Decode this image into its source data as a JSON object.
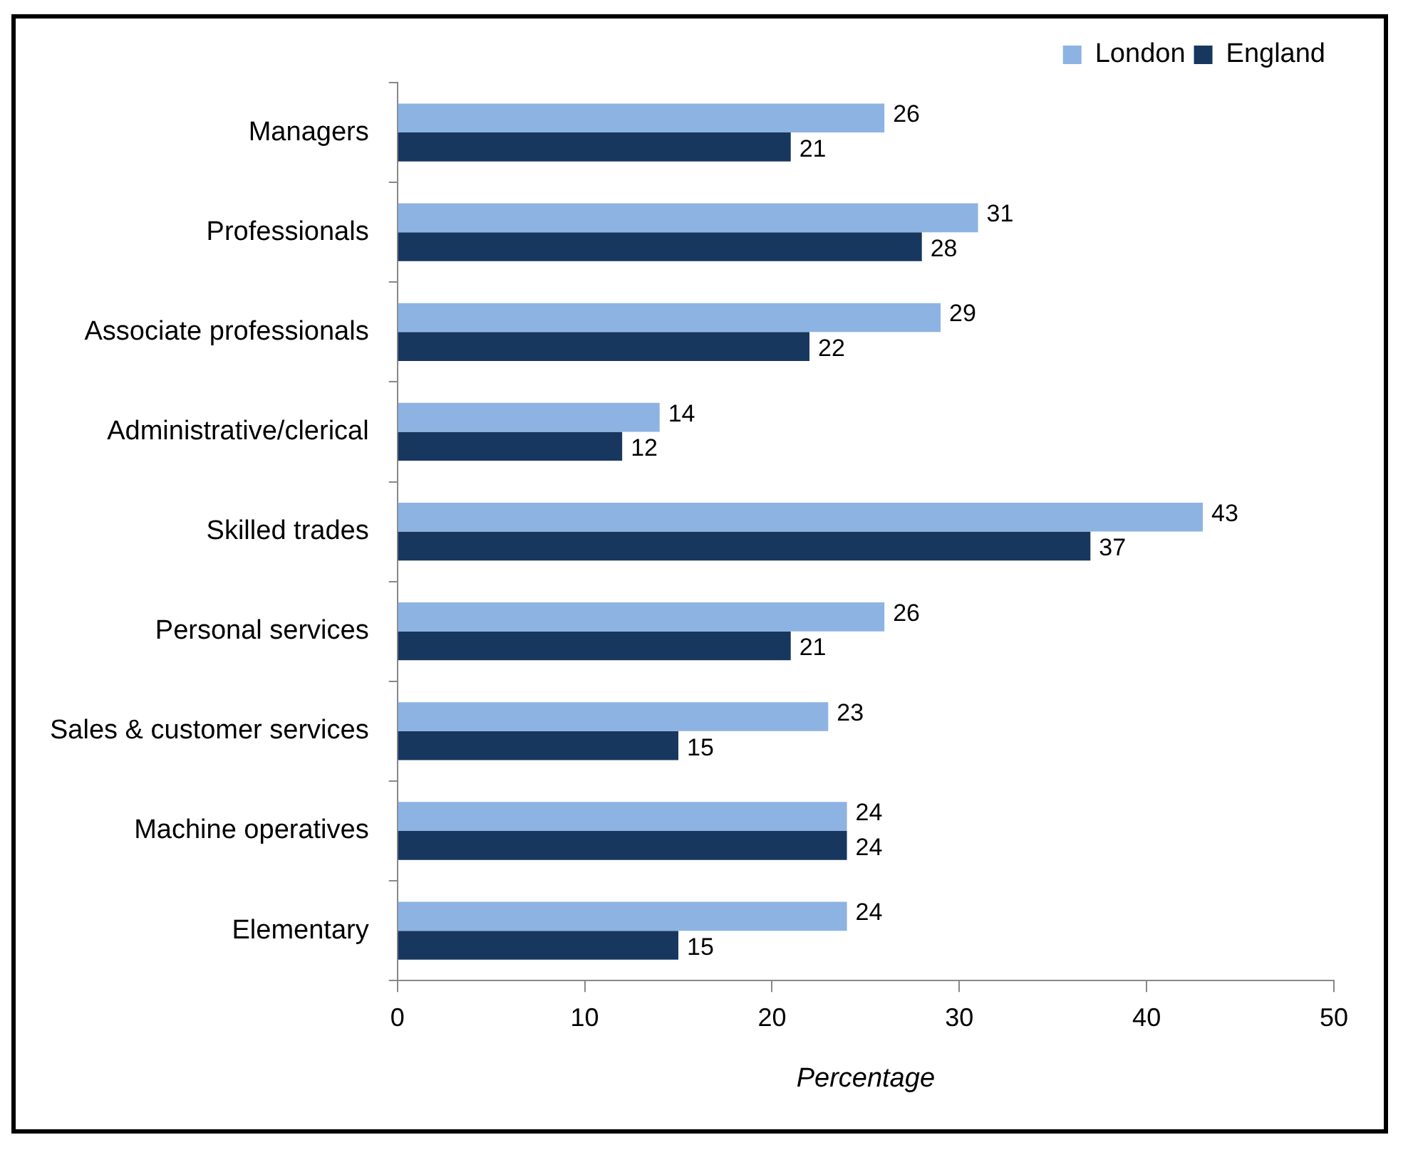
{
  "chart_data": {
    "type": "bar",
    "orientation": "horizontal",
    "xlabel": "Percentage",
    "categories": [
      "Managers",
      "Professionals",
      "Associate professionals",
      "Administrative/clerical",
      "Skilled trades",
      "Personal services",
      "Sales & customer services",
      "Machine operatives",
      "Elementary"
    ],
    "series": [
      {
        "name": "London",
        "color": "#8db3e2",
        "values": [
          26,
          31,
          29,
          14,
          43,
          26,
          23,
          24,
          24
        ]
      },
      {
        "name": "England",
        "color": "#17375e",
        "values": [
          21,
          28,
          22,
          12,
          37,
          21,
          15,
          24,
          15
        ]
      }
    ],
    "xlim": [
      0,
      50
    ],
    "xticks": [
      0,
      10,
      20,
      30,
      40,
      50
    ],
    "grid": false,
    "legend": "top right",
    "data_labels": true
  }
}
